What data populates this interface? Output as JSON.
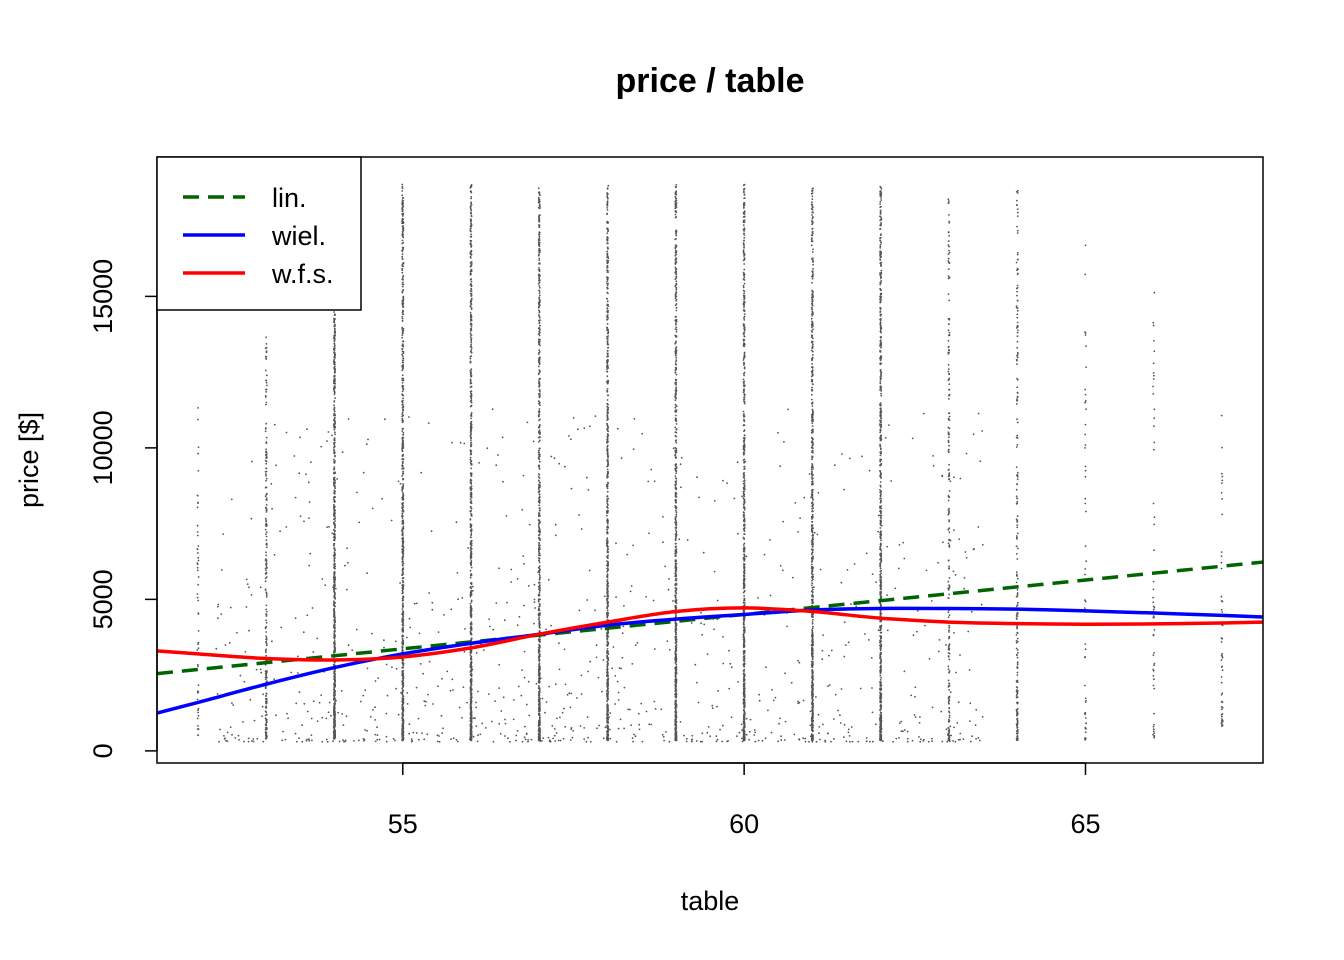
{
  "chart_data": {
    "type": "scatter",
    "title": "price / table",
    "xlabel": "table",
    "ylabel": "price [$]",
    "xlim": [
      51.4,
      67.6
    ],
    "ylim": [
      -400,
      19600
    ],
    "xticks": [
      55,
      60,
      65
    ],
    "yticks": [
      0,
      5000,
      10000,
      15000
    ],
    "grid": false,
    "legend_position": "top-left",
    "point_color": "#555555",
    "series": [
      {
        "name": "lin.",
        "style": "dashed",
        "color": "#006400",
        "x": [
          51.4,
          67.6
        ],
        "y": [
          2550,
          6230
        ]
      },
      {
        "name": "wiel.",
        "style": "solid",
        "color": "#0000ff",
        "x": [
          51.4,
          52,
          53,
          54,
          55,
          56,
          57,
          58,
          59,
          60,
          61,
          62,
          63,
          64,
          65,
          66,
          67,
          67.6
        ],
        "y": [
          1250,
          1600,
          2200,
          2750,
          3200,
          3550,
          3850,
          4150,
          4350,
          4500,
          4650,
          4700,
          4700,
          4680,
          4620,
          4550,
          4470,
          4420
        ]
      },
      {
        "name": "w.f.s.",
        "style": "solid",
        "color": "#ff0000",
        "x": [
          51.4,
          52,
          53,
          54,
          55,
          56,
          57,
          58,
          59,
          60,
          61,
          62,
          63,
          64,
          65,
          66,
          67,
          67.6
        ],
        "y": [
          3300,
          3200,
          3050,
          3000,
          3100,
          3400,
          3850,
          4250,
          4600,
          4720,
          4600,
          4380,
          4250,
          4200,
          4180,
          4190,
          4220,
          4250
        ]
      }
    ],
    "point_columns": [
      {
        "x": 52,
        "ymin": 500,
        "ymax": 11400,
        "density": "sparse"
      },
      {
        "x": 53,
        "ymin": 400,
        "ymax": 13800,
        "density": "medium"
      },
      {
        "x": 54,
        "ymin": 400,
        "ymax": 14500,
        "density": "dense"
      },
      {
        "x": 55,
        "ymin": 350,
        "ymax": 18700,
        "density": "dense"
      },
      {
        "x": 56,
        "ymin": 350,
        "ymax": 18700,
        "density": "dense"
      },
      {
        "x": 57,
        "ymin": 350,
        "ymax": 18700,
        "density": "dense"
      },
      {
        "x": 58,
        "ymin": 350,
        "ymax": 18700,
        "density": "dense"
      },
      {
        "x": 59,
        "ymin": 350,
        "ymax": 18700,
        "density": "dense"
      },
      {
        "x": 60,
        "ymin": 350,
        "ymax": 18700,
        "density": "dense"
      },
      {
        "x": 61,
        "ymin": 350,
        "ymax": 18600,
        "density": "dense"
      },
      {
        "x": 62,
        "ymin": 350,
        "ymax": 18700,
        "density": "dense"
      },
      {
        "x": 63,
        "ymin": 350,
        "ymax": 18300,
        "density": "medium"
      },
      {
        "x": 64,
        "ymin": 350,
        "ymax": 18500,
        "density": "medium"
      },
      {
        "x": 65,
        "ymin": 350,
        "ymax": 16700,
        "density": "sparse"
      },
      {
        "x": 66,
        "ymin": 400,
        "ymax": 15600,
        "density": "sparse"
      },
      {
        "x": 67,
        "ymin": 800,
        "ymax": 11300,
        "density": "sparse"
      }
    ],
    "scatter_between_region": {
      "xmin": 52.2,
      "xmax": 63.5,
      "ymin": 300,
      "ymax": 18600
    }
  }
}
